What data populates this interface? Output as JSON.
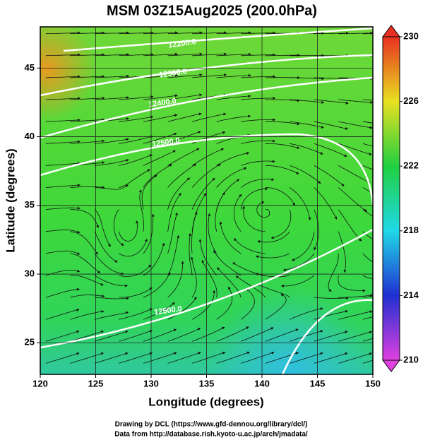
{
  "title": "MSM 03Z15Aug2025 (200.0hPa)",
  "x_axis": {
    "label": "Longitude (degrees)",
    "lim": [
      120,
      150
    ],
    "ticks": [
      120,
      125,
      130,
      135,
      140,
      145,
      150
    ]
  },
  "y_axis": {
    "label": "Latitude  (degrees)",
    "lim": [
      22.7,
      48.0
    ],
    "ticks": [
      25,
      30,
      35,
      40,
      45
    ]
  },
  "colorbar": {
    "lim": [
      210,
      230
    ],
    "ticks": [
      210,
      214,
      218,
      222,
      226,
      230
    ],
    "colors": [
      "#e040e0",
      "#2030d0",
      "#20d8e8",
      "#20d040",
      "#e8e020",
      "#e83020"
    ]
  },
  "contours": [
    {
      "label": "12200.0"
    },
    {
      "label": "12300.0"
    },
    {
      "label": "12400.0"
    },
    {
      "label": "12500.0"
    },
    {
      "label": "12500.0"
    }
  ],
  "footer": [
    "Drawing by DCL (https://www.gfd-dennou.org/library/dcl/)",
    "Data from http://database.rish.kyoto-u.ac.jp/arch/jmadata/"
  ]
}
